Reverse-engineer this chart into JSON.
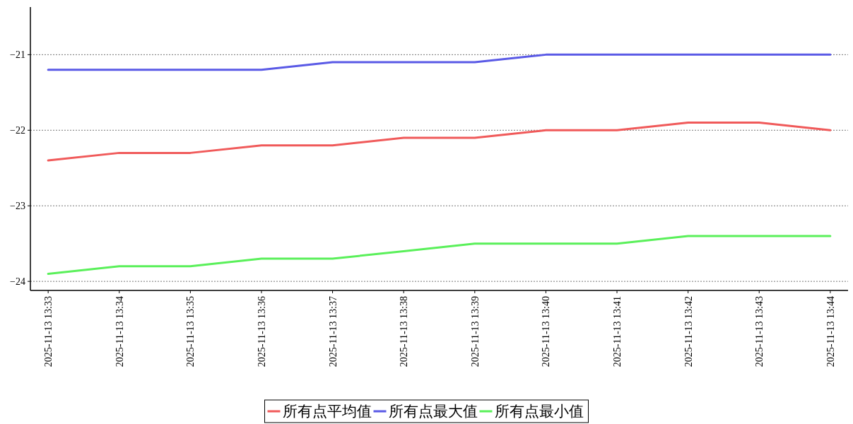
{
  "chart_data": {
    "type": "line",
    "categories": [
      "2025-11-13 13:33",
      "2025-11-13 13:34",
      "2025-11-13 13:35",
      "2025-11-13 13:36",
      "2025-11-13 13:37",
      "2025-11-13 13:38",
      "2025-11-13 13:39",
      "2025-11-13 13:40",
      "2025-11-13 13:41",
      "2025-11-13 13:42",
      "2025-11-13 13:43",
      "2025-11-13 13:44"
    ],
    "series": [
      {
        "name": "所有点平均值",
        "color": "#f05a5a",
        "values": [
          -22.4,
          -22.3,
          -22.3,
          -22.2,
          -22.2,
          -22.1,
          -22.1,
          -22.0,
          -22.0,
          -21.9,
          -21.9,
          -22.0
        ]
      },
      {
        "name": "所有点最大值",
        "color": "#5a5ae6",
        "values": [
          -21.2,
          -21.2,
          -21.2,
          -21.2,
          -21.1,
          -21.1,
          -21.1,
          -21.0,
          -21.0,
          -21.0,
          -21.0,
          -21.0
        ]
      },
      {
        "name": "所有点最小值",
        "color": "#5af05a",
        "values": [
          -23.9,
          -23.8,
          -23.8,
          -23.7,
          -23.7,
          -23.6,
          -23.5,
          -23.5,
          -23.5,
          -23.4,
          -23.4,
          -23.4
        ]
      }
    ],
    "ylim": [
      -24.12,
      -20.37
    ],
    "yticks": [
      {
        "value": -24,
        "label": "−24"
      },
      {
        "value": -23,
        "label": "−23"
      },
      {
        "value": -22,
        "label": "−22"
      },
      {
        "value": -21,
        "label": "−21"
      }
    ],
    "grid": "y",
    "legend": "bottom"
  }
}
